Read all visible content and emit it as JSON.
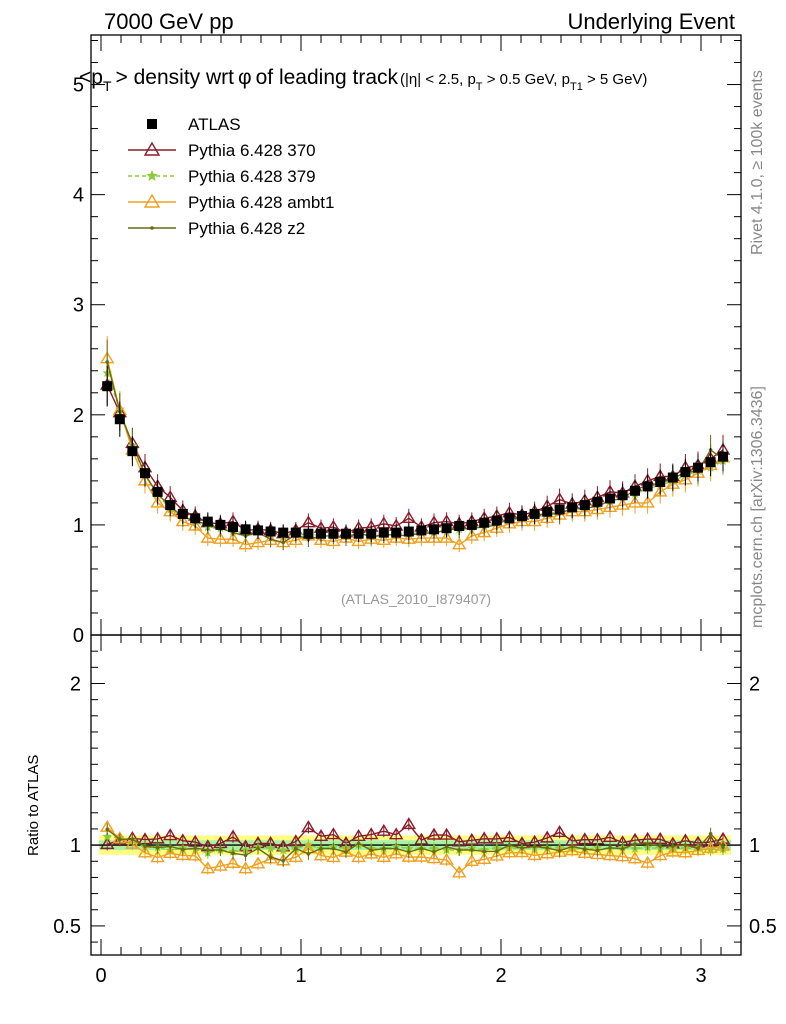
{
  "header": {
    "energy": "7000 GeV pp",
    "process": "Underlying Event"
  },
  "side_labels": {
    "rivet": "Rivet 4.1.0, ≥ 100k events",
    "mcplots": "mcplots.cern.ch [arXiv:1306.3436]"
  },
  "chart_data": [
    {
      "type": "scatter",
      "title_main": "<p",
      "title_sub1": "T",
      "title_rest": "> density wrt",
      "title_phi": "φ",
      "title_tail": "of leading track",
      "cuts": {
        "part1": "(|η| < 2.5, p",
        "sub1": "T",
        "part2": " > 0.5 GeV, p",
        "sub2": "T1",
        "part3": " > 5 GeV)"
      },
      "analysis_label": "(ATLAS_2010_I879407)",
      "xlim": [
        -0.05,
        3.2
      ],
      "ylim": [
        0,
        5.45
      ],
      "yticks": [
        "0",
        "1",
        "2",
        "3",
        "4",
        "5"
      ],
      "xticks": [
        "0",
        "1",
        "2",
        "3"
      ],
      "legend_position": "top-left",
      "x": [
        0.031,
        0.094,
        0.157,
        0.22,
        0.283,
        0.346,
        0.409,
        0.471,
        0.534,
        0.597,
        0.66,
        0.723,
        0.785,
        0.848,
        0.911,
        0.974,
        1.037,
        1.1,
        1.162,
        1.225,
        1.288,
        1.351,
        1.414,
        1.476,
        1.539,
        1.602,
        1.665,
        1.728,
        1.791,
        1.854,
        1.916,
        1.979,
        2.042,
        2.105,
        2.168,
        2.231,
        2.293,
        2.356,
        2.419,
        2.482,
        2.545,
        2.608,
        2.67,
        2.733,
        2.796,
        2.859,
        2.922,
        2.985,
        3.048,
        3.11
      ],
      "series": [
        {
          "name": "ATLAS",
          "color": "#000000",
          "marker": "square",
          "values": [
            2.26,
            1.96,
            1.67,
            1.47,
            1.3,
            1.18,
            1.1,
            1.06,
            1.03,
            1.0,
            0.98,
            0.96,
            0.95,
            0.94,
            0.93,
            0.93,
            0.92,
            0.92,
            0.92,
            0.92,
            0.92,
            0.92,
            0.93,
            0.93,
            0.94,
            0.95,
            0.96,
            0.97,
            0.99,
            1.0,
            1.02,
            1.04,
            1.06,
            1.08,
            1.1,
            1.12,
            1.14,
            1.16,
            1.18,
            1.21,
            1.24,
            1.27,
            1.31,
            1.35,
            1.39,
            1.43,
            1.48,
            1.52,
            1.57,
            1.62
          ]
        },
        {
          "name": "Pythia 6.428 370",
          "color": "#8b1a2b",
          "marker": "open-triangle",
          "values": [
            2.27,
            2.02,
            1.74,
            1.52,
            1.35,
            1.25,
            1.13,
            1.08,
            1.02,
            1.01,
            1.03,
            0.95,
            0.96,
            0.95,
            0.92,
            0.95,
            1.02,
            0.97,
            0.98,
            0.93,
            0.97,
            0.98,
            1.01,
            0.99,
            1.06,
            0.98,
            1.02,
            1.03,
            1.01,
            1.03,
            1.06,
            1.08,
            1.11,
            1.09,
            1.12,
            1.17,
            1.23,
            1.19,
            1.22,
            1.25,
            1.3,
            1.29,
            1.35,
            1.4,
            1.44,
            1.44,
            1.52,
            1.54,
            1.6,
            1.68
          ]
        },
        {
          "name": "Pythia 6.428 379",
          "color": "#8ccc3c",
          "marker": "star",
          "values": [
            2.38,
            2.05,
            1.72,
            1.45,
            1.28,
            1.14,
            1.08,
            1.03,
            0.98,
            0.97,
            0.94,
            0.93,
            0.94,
            0.92,
            0.9,
            0.91,
            0.92,
            0.9,
            0.91,
            0.9,
            0.92,
            0.9,
            0.91,
            0.92,
            0.92,
            0.93,
            0.94,
            0.94,
            0.96,
            0.98,
            0.99,
            1.02,
            1.04,
            1.06,
            1.08,
            1.1,
            1.12,
            1.14,
            1.15,
            1.19,
            1.21,
            1.25,
            1.28,
            1.33,
            1.36,
            1.4,
            1.45,
            1.49,
            1.52,
            1.58
          ]
        },
        {
          "name": "Pythia 6.428 ambt1",
          "color": "#f0a020",
          "marker": "open-triangle",
          "values": [
            2.51,
            2.04,
            1.68,
            1.4,
            1.2,
            1.12,
            1.03,
            0.99,
            0.88,
            0.87,
            0.87,
            0.82,
            0.84,
            0.86,
            0.84,
            0.86,
            0.9,
            0.86,
            0.85,
            0.88,
            0.85,
            0.87,
            0.86,
            0.88,
            0.87,
            0.88,
            0.88,
            0.88,
            0.82,
            0.9,
            0.93,
            0.97,
            1.01,
            1.03,
            1.03,
            1.06,
            1.09,
            1.12,
            1.12,
            1.14,
            1.16,
            1.18,
            1.2,
            1.2,
            1.3,
            1.37,
            1.41,
            1.47,
            1.54,
            1.61
          ]
        },
        {
          "name": "Pythia 6.428 z2",
          "color": "#6b6b10",
          "marker": "dot",
          "values": [
            2.48,
            2.03,
            1.73,
            1.46,
            1.28,
            1.17,
            1.07,
            1.04,
            1.0,
            0.97,
            0.93,
            0.9,
            0.93,
            0.87,
            0.84,
            0.91,
            0.87,
            0.9,
            0.9,
            0.88,
            0.93,
            0.89,
            0.91,
            0.91,
            0.9,
            0.93,
            0.92,
            0.96,
            0.96,
            0.97,
            0.98,
            1.0,
            1.06,
            1.06,
            1.09,
            1.1,
            1.1,
            1.15,
            1.15,
            1.17,
            1.22,
            1.24,
            1.32,
            1.36,
            1.38,
            1.42,
            1.48,
            1.49,
            1.68,
            1.6
          ]
        }
      ]
    },
    {
      "type": "line",
      "ylabel": "Ratio to ATLAS",
      "xlim": [
        -0.05,
        3.2
      ],
      "ylim": [
        0.32,
        2.3
      ],
      "yticks_left": [
        "0.5",
        "1",
        "2"
      ],
      "yticks_right": [
        "0.5",
        "1",
        "2"
      ],
      "xticks": [
        "0",
        "1",
        "2",
        "3"
      ],
      "reference_line": 1.0,
      "bands": [
        {
          "name": "ATLAS total uncertainty",
          "color": "#ffff80",
          "low": 0.94,
          "high": 1.06
        },
        {
          "name": "ATLAS statistical uncertainty",
          "color": "#a8f0a8",
          "low": 0.97,
          "high": 1.03
        }
      ]
    }
  ]
}
